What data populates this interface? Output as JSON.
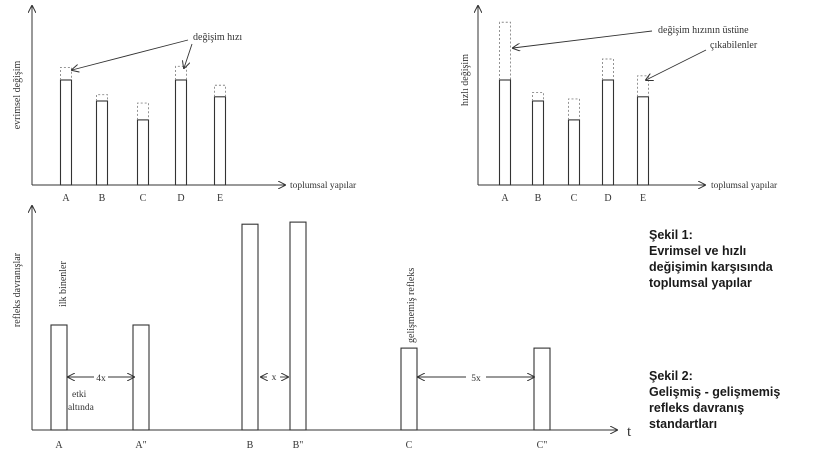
{
  "chart_data": [
    {
      "type": "bar",
      "ylabel": "evrimsel değişim",
      "xlabel": "toplumsal yapılar",
      "categories": [
        "A",
        "B",
        "C",
        "D",
        "E"
      ],
      "values": [
        100,
        80,
        62,
        100,
        84
      ],
      "change_increments": [
        12,
        6,
        16,
        13,
        11
      ],
      "annotations": [
        "değişim hızı"
      ]
    },
    {
      "type": "bar",
      "ylabel": "hızlı değişim",
      "xlabel": "toplumsal yapılar",
      "categories": [
        "A",
        "B",
        "C",
        "D",
        "E"
      ],
      "values": [
        100,
        80,
        62,
        100,
        84
      ],
      "change_increments": [
        55,
        8,
        20,
        20,
        20
      ],
      "annotations": [
        "değişim hızının üstüne",
        "çıkabilenler"
      ]
    },
    {
      "type": "bar",
      "ylabel": "refleks davranışlar",
      "xlabel": "t",
      "categories": [
        "A",
        "A\"",
        "B",
        "B\"",
        "C",
        "C\""
      ],
      "values": [
        100,
        100,
        196,
        198,
        78,
        78
      ],
      "annotations": [
        "ilk binenler",
        "4x",
        "etki",
        "altında",
        "x",
        "gelişmemiş refleks",
        "5x"
      ]
    }
  ],
  "captions": {
    "fig1": [
      "Şekil 1:",
      "Evrimsel ve hızlı",
      "değişimin karşısında",
      "toplumsal yapılar"
    ],
    "fig2": [
      "Şekil 2:",
      "Gelişmiş - gelişmemiş",
      "refleks davranış",
      "standartları"
    ]
  },
  "colors": {
    "ink": "#333333",
    "dashed": "#888888",
    "caption": "#1a1a1a"
  }
}
